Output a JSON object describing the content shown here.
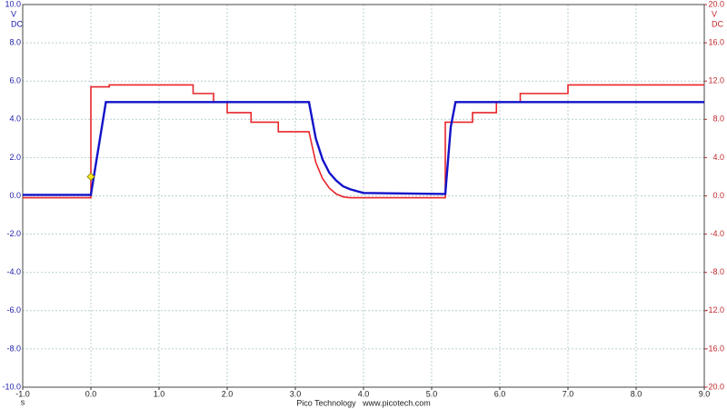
{
  "chart_data": {
    "type": "line",
    "xlim": [
      -1,
      9
    ],
    "xticks": [
      {
        "value": -1,
        "label": "-1.0"
      },
      {
        "value": 0,
        "label": "0.0"
      },
      {
        "value": 1,
        "label": "1.0"
      },
      {
        "value": 2,
        "label": "2.0"
      },
      {
        "value": 3,
        "label": "3.0"
      },
      {
        "value": 4,
        "label": "4.0"
      },
      {
        "value": 5,
        "label": "5.0"
      },
      {
        "value": 6,
        "label": "6.0"
      },
      {
        "value": 7,
        "label": "7.0"
      },
      {
        "value": 8,
        "label": "8.0"
      },
      {
        "value": 9,
        "label": "9.0"
      }
    ],
    "x_label": "s",
    "ylim": [
      -10,
      10
    ],
    "yticks": [
      {
        "value": 10,
        "label": "10.0"
      },
      {
        "value": 8,
        "label": "8.0"
      },
      {
        "value": 6,
        "label": "6.0"
      },
      {
        "value": 4,
        "label": "4.0"
      },
      {
        "value": 2,
        "label": "2.0"
      },
      {
        "value": 0,
        "label": "0.0"
      },
      {
        "value": -2,
        "label": "-2.0"
      },
      {
        "value": -4,
        "label": "-4.0"
      },
      {
        "value": -6,
        "label": "-6.0"
      },
      {
        "value": -8,
        "label": "-8.0"
      },
      {
        "value": -10,
        "label": "-10.0"
      }
    ],
    "y_unit": "V",
    "y_coupling": "DC",
    "y_color": "#1a1aa8",
    "y2lim": [
      -20,
      20
    ],
    "y2ticks": [
      {
        "value": 20,
        "label": "20.0"
      },
      {
        "value": 16,
        "label": "16.0"
      },
      {
        "value": 12,
        "label": "12.0"
      },
      {
        "value": 8,
        "label": "8.0"
      },
      {
        "value": 4,
        "label": "4.0"
      },
      {
        "value": 0,
        "label": "0.0"
      },
      {
        "value": -4,
        "label": "-4.0"
      },
      {
        "value": -8,
        "label": "-8.0"
      },
      {
        "value": -12,
        "label": "-12.0"
      },
      {
        "value": -16,
        "label": "-16.0"
      },
      {
        "value": -20,
        "label": "-20.0"
      }
    ],
    "y2_unit": "V",
    "y2_coupling": "DC",
    "y2_color": "#c0282d",
    "grid": true,
    "footer": "Pico Technology   www.picotech.com",
    "series": [
      {
        "color": "#e8262b",
        "axis": "y2",
        "x": [
          -1,
          0,
          0,
          0.27,
          0.27,
          1.5,
          1.5,
          1.8,
          1.8,
          2.0,
          2.0,
          2.35,
          2.35,
          2.75,
          2.75,
          3.2,
          3.3,
          3.4,
          3.5,
          3.6,
          3.7,
          3.8,
          5.2,
          5.2,
          5.6,
          5.6,
          5.95,
          5.95,
          6.3,
          6.3,
          7.0,
          7.0,
          9.0
        ],
        "values": [
          -0.2,
          -0.2,
          11.4,
          11.4,
          11.6,
          11.6,
          10.7,
          10.7,
          9.8,
          9.8,
          8.7,
          8.7,
          7.7,
          7.7,
          6.7,
          6.7,
          3.5,
          1.8,
          0.8,
          0.2,
          -0.1,
          -0.2,
          -0.2,
          7.7,
          7.7,
          8.7,
          8.7,
          9.8,
          9.8,
          10.7,
          10.7,
          11.6,
          11.6
        ]
      },
      {
        "color": "#1212c8",
        "axis": "y",
        "x": [
          -1,
          0,
          0.22,
          3.2,
          3.3,
          3.4,
          3.5,
          3.6,
          3.7,
          3.8,
          3.9,
          4.0,
          5.2,
          5.28,
          5.35,
          9.0
        ],
        "values": [
          0.05,
          0.05,
          4.9,
          4.9,
          3.0,
          1.9,
          1.2,
          0.8,
          0.5,
          0.35,
          0.25,
          0.15,
          0.1,
          3.6,
          4.9,
          4.9
        ]
      }
    ],
    "markers": [
      {
        "x": 0,
        "y": 1.0,
        "color": "#f5e61a"
      }
    ]
  }
}
